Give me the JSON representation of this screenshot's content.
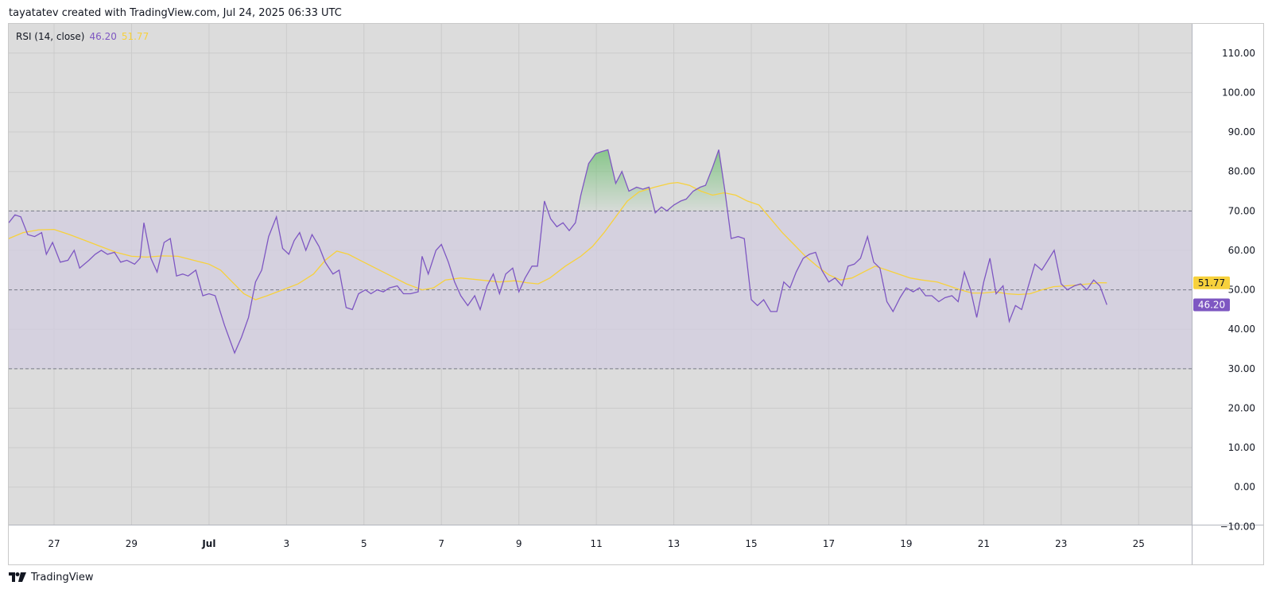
{
  "header": {
    "attribution": "tayatatev created with TradingView.com, Jul 24, 2025 06:33 UTC"
  },
  "legend": {
    "indicator": "RSI (14, close)",
    "rsi_value": "46.20",
    "ma_value": "51.77"
  },
  "footer": {
    "brand": "TradingView"
  },
  "colors": {
    "rsi_line": "#7e57c2",
    "ma_line": "#f7d13c",
    "band_fill": "#d3cde0",
    "overbought_fill": "#7cc37f",
    "chart_bg": "#dcdcdc"
  },
  "chart_data": {
    "type": "line",
    "title": "RSI (14, close)",
    "ylim": [
      -10,
      110
    ],
    "y_ticks": [
      "110.00",
      "100.00",
      "90.00",
      "80.00",
      "70.00",
      "60.00",
      "50.00",
      "40.00",
      "30.00",
      "20.00",
      "10.00",
      "0.00",
      "−10.00"
    ],
    "x_ticks": [
      {
        "label": "27",
        "t": 1.0,
        "bold": false
      },
      {
        "label": "29",
        "t": 3.0,
        "bold": false
      },
      {
        "label": "Jul",
        "t": 5.0,
        "bold": true
      },
      {
        "label": "3",
        "t": 7.0,
        "bold": false
      },
      {
        "label": "5",
        "t": 9.0,
        "bold": false
      },
      {
        "label": "7",
        "t": 11.0,
        "bold": false
      },
      {
        "label": "9",
        "t": 13.0,
        "bold": false
      },
      {
        "label": "11",
        "t": 15.0,
        "bold": false
      },
      {
        "label": "13",
        "t": 17.0,
        "bold": false
      },
      {
        "label": "15",
        "t": 19.0,
        "bold": false
      },
      {
        "label": "17",
        "t": 21.0,
        "bold": false
      },
      {
        "label": "19",
        "t": 23.0,
        "bold": false
      },
      {
        "label": "21",
        "t": 25.0,
        "bold": false
      },
      {
        "label": "23",
        "t": 27.0,
        "bold": false
      },
      {
        "label": "25",
        "t": 29.0,
        "bold": false
      }
    ],
    "x_range": [
      -0.17,
      30.37
    ],
    "bands": {
      "upper": 70,
      "middle": 50,
      "lower": 30
    },
    "grid": true,
    "badges": [
      {
        "value": 51.77,
        "label": "51.77",
        "series": "ma"
      },
      {
        "value": 46.2,
        "label": "46.20",
        "series": "rsi"
      }
    ],
    "series": [
      {
        "name": "RSI",
        "points": [
          [
            -0.17,
            67
          ],
          [
            -0.01,
            69
          ],
          [
            0.14,
            68.5
          ],
          [
            0.32,
            64
          ],
          [
            0.5,
            63.5
          ],
          [
            0.68,
            64.5
          ],
          [
            0.8,
            59
          ],
          [
            0.96,
            62
          ],
          [
            1.16,
            57
          ],
          [
            1.36,
            57.5
          ],
          [
            1.52,
            60
          ],
          [
            1.66,
            55.5
          ],
          [
            1.9,
            57.5
          ],
          [
            2.06,
            59
          ],
          [
            2.22,
            60
          ],
          [
            2.38,
            59
          ],
          [
            2.56,
            59.5
          ],
          [
            2.72,
            57
          ],
          [
            2.88,
            57.5
          ],
          [
            3.08,
            56.5
          ],
          [
            3.22,
            58
          ],
          [
            3.32,
            67
          ],
          [
            3.5,
            58
          ],
          [
            3.66,
            54.5
          ],
          [
            3.84,
            62
          ],
          [
            4.0,
            63
          ],
          [
            4.16,
            53.5
          ],
          [
            4.32,
            54
          ],
          [
            4.46,
            53.5
          ],
          [
            4.66,
            55
          ],
          [
            4.84,
            48.5
          ],
          [
            5.0,
            49
          ],
          [
            5.16,
            48.5
          ],
          [
            5.4,
            41
          ],
          [
            5.66,
            34
          ],
          [
            5.84,
            38
          ],
          [
            6.02,
            43
          ],
          [
            6.2,
            52
          ],
          [
            6.36,
            55
          ],
          [
            6.54,
            63.5
          ],
          [
            6.74,
            68.5
          ],
          [
            6.9,
            60.5
          ],
          [
            7.06,
            59
          ],
          [
            7.2,
            62.5
          ],
          [
            7.34,
            64.5
          ],
          [
            7.5,
            60
          ],
          [
            7.66,
            64
          ],
          [
            7.84,
            61
          ],
          [
            8.0,
            57
          ],
          [
            8.2,
            54
          ],
          [
            8.36,
            55
          ],
          [
            8.54,
            45.5
          ],
          [
            8.7,
            45
          ],
          [
            8.86,
            49
          ],
          [
            9.04,
            50
          ],
          [
            9.18,
            49
          ],
          [
            9.34,
            50
          ],
          [
            9.5,
            49.5
          ],
          [
            9.66,
            50.5
          ],
          [
            9.86,
            51
          ],
          [
            10.02,
            49
          ],
          [
            10.2,
            49
          ],
          [
            10.4,
            49.5
          ],
          [
            10.5,
            58.5
          ],
          [
            10.66,
            54
          ],
          [
            10.86,
            60
          ],
          [
            11.0,
            61.5
          ],
          [
            11.18,
            57
          ],
          [
            11.34,
            52
          ],
          [
            11.5,
            48.5
          ],
          [
            11.68,
            46
          ],
          [
            11.86,
            48.5
          ],
          [
            12.0,
            45
          ],
          [
            12.18,
            51
          ],
          [
            12.34,
            54
          ],
          [
            12.5,
            49
          ],
          [
            12.66,
            54
          ],
          [
            12.84,
            55.5
          ],
          [
            13.0,
            49.5
          ],
          [
            13.16,
            53
          ],
          [
            13.34,
            56
          ],
          [
            13.48,
            56
          ],
          [
            13.66,
            72.5
          ],
          [
            13.82,
            68
          ],
          [
            13.98,
            66
          ],
          [
            14.14,
            67
          ],
          [
            14.3,
            65
          ],
          [
            14.46,
            67
          ],
          [
            14.6,
            74
          ],
          [
            14.8,
            82
          ],
          [
            14.98,
            84.5
          ],
          [
            15.12,
            85
          ],
          [
            15.3,
            85.5
          ],
          [
            15.5,
            77
          ],
          [
            15.66,
            80
          ],
          [
            15.84,
            75
          ],
          [
            16.04,
            76
          ],
          [
            16.2,
            75.5
          ],
          [
            16.36,
            76
          ],
          [
            16.52,
            69.5
          ],
          [
            16.68,
            71
          ],
          [
            16.82,
            70
          ],
          [
            17.0,
            71.5
          ],
          [
            17.18,
            72.5
          ],
          [
            17.32,
            73
          ],
          [
            17.5,
            75
          ],
          [
            17.68,
            76
          ],
          [
            17.82,
            76.5
          ],
          [
            18.0,
            81
          ],
          [
            18.16,
            85.5
          ],
          [
            18.32,
            75
          ],
          [
            18.48,
            63
          ],
          [
            18.66,
            63.5
          ],
          [
            18.82,
            63
          ],
          [
            19.0,
            47.5
          ],
          [
            19.16,
            46
          ],
          [
            19.32,
            47.5
          ],
          [
            19.5,
            44.5
          ],
          [
            19.66,
            44.5
          ],
          [
            19.84,
            52
          ],
          [
            20.0,
            50.5
          ],
          [
            20.16,
            54.5
          ],
          [
            20.34,
            58
          ],
          [
            20.5,
            59
          ],
          [
            20.66,
            59.5
          ],
          [
            20.82,
            55
          ],
          [
            21.0,
            52
          ],
          [
            21.16,
            53
          ],
          [
            21.34,
            51
          ],
          [
            21.5,
            56
          ],
          [
            21.66,
            56.5
          ],
          [
            21.82,
            58
          ],
          [
            22.0,
            63.5
          ],
          [
            22.16,
            57
          ],
          [
            22.32,
            55.5
          ],
          [
            22.5,
            47
          ],
          [
            22.66,
            44.5
          ],
          [
            22.84,
            48
          ],
          [
            23.0,
            50.5
          ],
          [
            23.18,
            49.5
          ],
          [
            23.34,
            50.5
          ],
          [
            23.5,
            48.5
          ],
          [
            23.66,
            48.5
          ],
          [
            23.84,
            47
          ],
          [
            24.0,
            48
          ],
          [
            24.18,
            48.5
          ],
          [
            24.34,
            47
          ],
          [
            24.5,
            54.5
          ],
          [
            24.66,
            50
          ],
          [
            24.82,
            43
          ],
          [
            25.0,
            52
          ],
          [
            25.16,
            58
          ],
          [
            25.32,
            49
          ],
          [
            25.5,
            51
          ],
          [
            25.66,
            42
          ],
          [
            25.82,
            46
          ],
          [
            25.98,
            45
          ],
          [
            26.14,
            50.5
          ],
          [
            26.32,
            56.5
          ],
          [
            26.5,
            55
          ],
          [
            26.66,
            57.5
          ],
          [
            26.82,
            60
          ],
          [
            27.0,
            51.5
          ],
          [
            27.16,
            50
          ],
          [
            27.34,
            51
          ],
          [
            27.5,
            51.5
          ],
          [
            27.66,
            50
          ],
          [
            27.84,
            52.5
          ],
          [
            28.0,
            51
          ],
          [
            28.18,
            46.2
          ]
        ]
      },
      {
        "name": "RSI-based MA",
        "points": [
          [
            -0.17,
            63
          ],
          [
            0.2,
            64.5
          ],
          [
            0.6,
            65.2
          ],
          [
            1.0,
            65.3
          ],
          [
            1.4,
            64
          ],
          [
            1.8,
            62.5
          ],
          [
            2.2,
            61
          ],
          [
            2.6,
            59.5
          ],
          [
            3.0,
            58.5
          ],
          [
            3.4,
            58.3
          ],
          [
            3.8,
            58.6
          ],
          [
            4.2,
            58.5
          ],
          [
            4.6,
            57.5
          ],
          [
            5.0,
            56.5
          ],
          [
            5.3,
            55
          ],
          [
            5.6,
            52
          ],
          [
            5.9,
            49
          ],
          [
            6.2,
            47.5
          ],
          [
            6.5,
            48.5
          ],
          [
            6.9,
            50
          ],
          [
            7.3,
            51.5
          ],
          [
            7.7,
            54
          ],
          [
            8.0,
            57.5
          ],
          [
            8.3,
            59.8
          ],
          [
            8.6,
            59
          ],
          [
            8.9,
            57.5
          ],
          [
            9.3,
            55.5
          ],
          [
            9.7,
            53.5
          ],
          [
            10.1,
            51.5
          ],
          [
            10.5,
            50
          ],
          [
            10.8,
            50.5
          ],
          [
            11.1,
            52.5
          ],
          [
            11.5,
            53
          ],
          [
            12.0,
            52.5
          ],
          [
            12.5,
            52
          ],
          [
            12.9,
            52.3
          ],
          [
            13.2,
            51.8
          ],
          [
            13.5,
            51.5
          ],
          [
            13.8,
            53
          ],
          [
            14.2,
            56
          ],
          [
            14.6,
            58.5
          ],
          [
            14.9,
            61
          ],
          [
            15.2,
            64.5
          ],
          [
            15.5,
            68.5
          ],
          [
            15.8,
            72.5
          ],
          [
            16.1,
            74.8
          ],
          [
            16.5,
            76
          ],
          [
            16.9,
            77
          ],
          [
            17.1,
            77.2
          ],
          [
            17.4,
            76.5
          ],
          [
            17.7,
            75
          ],
          [
            18.0,
            74
          ],
          [
            18.3,
            74.6
          ],
          [
            18.6,
            74
          ],
          [
            18.9,
            72.5
          ],
          [
            19.2,
            71.5
          ],
          [
            19.5,
            68
          ],
          [
            19.8,
            64.5
          ],
          [
            20.1,
            61.5
          ],
          [
            20.4,
            58.5
          ],
          [
            20.7,
            56
          ],
          [
            21.0,
            53.8
          ],
          [
            21.3,
            52.5
          ],
          [
            21.6,
            53
          ],
          [
            21.9,
            54.5
          ],
          [
            22.2,
            56
          ],
          [
            22.5,
            55
          ],
          [
            22.8,
            54
          ],
          [
            23.1,
            53
          ],
          [
            23.4,
            52.5
          ],
          [
            23.8,
            52
          ],
          [
            24.1,
            51
          ],
          [
            24.4,
            50
          ],
          [
            24.7,
            49.2
          ],
          [
            25.0,
            49.2
          ],
          [
            25.3,
            49.5
          ],
          [
            25.6,
            49
          ],
          [
            25.9,
            48.8
          ],
          [
            26.2,
            49
          ],
          [
            26.5,
            50
          ],
          [
            26.8,
            50.8
          ],
          [
            27.1,
            51
          ],
          [
            27.4,
            51.2
          ],
          [
            27.7,
            51.5
          ],
          [
            28.0,
            51.8
          ],
          [
            28.18,
            51.77
          ]
        ]
      }
    ]
  }
}
